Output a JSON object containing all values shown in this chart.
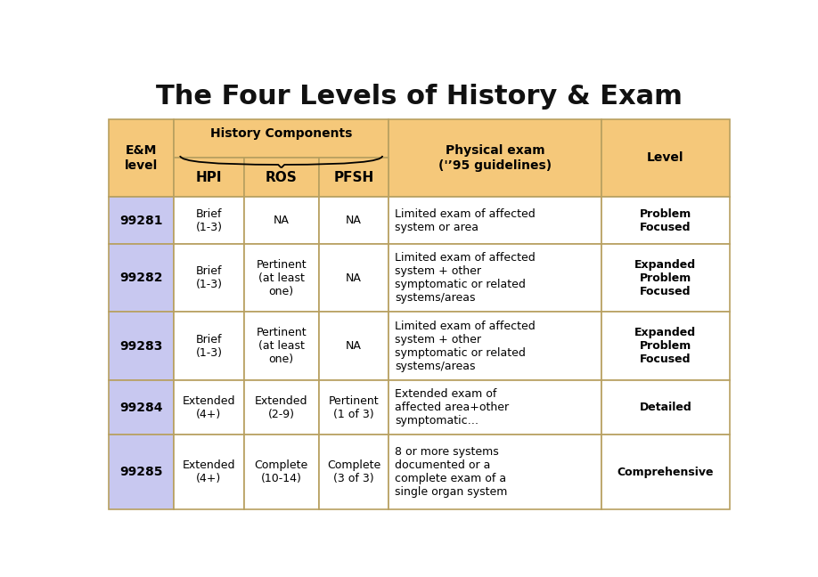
{
  "title": "The Four Levels of History & Exam",
  "background_color": "#ffffff",
  "header_bg_orange": "#f5c87a",
  "row_bg_lavender": "#c8c8f0",
  "row_bg_white": "#ffffff",
  "border_color": "#b8a060",
  "rows": [
    {
      "code": "99281",
      "hpi": "Brief\n(1-3)",
      "ros": "NA",
      "pfsh": "NA",
      "exam": "Limited exam of affected\nsystem or area",
      "level": "Problem\nFocused"
    },
    {
      "code": "99282",
      "hpi": "Brief\n(1-3)",
      "ros": "Pertinent\n(at least\none)",
      "pfsh": "NA",
      "exam": "Limited exam of affected\nsystem + other\nsymptomatic or related\nsystems/areas",
      "level": "Expanded\nProblem\nFocused"
    },
    {
      "code": "99283",
      "hpi": "Brief\n(1-3)",
      "ros": "Pertinent\n(at least\none)",
      "pfsh": "NA",
      "exam": "Limited exam of affected\nsystem + other\nsymptomatic or related\nsystems/areas",
      "level": "Expanded\nProblem\nFocused"
    },
    {
      "code": "99284",
      "hpi": "Extended\n(4+)",
      "ros": "Extended\n(2-9)",
      "pfsh": "Pertinent\n(1 of 3)",
      "exam": "Extended exam of\naffected area+other\nsymptomatic…",
      "level": "Detailed"
    },
    {
      "code": "99285",
      "hpi": "Extended\n(4+)",
      "ros": "Complete\n(10-14)",
      "pfsh": "Complete\n(3 of 3)",
      "exam": "8 or more systems\ndocumented or a\ncomplete exam of a\nsingle organ system",
      "level": "Comprehensive"
    }
  ]
}
